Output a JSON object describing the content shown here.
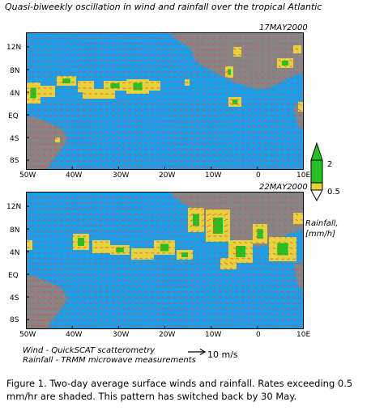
{
  "title": "Quasi-biweekly oscillation in wind and rainfall over the tropical Atlantic",
  "panels": [
    {
      "date": "17MAY2000"
    },
    {
      "date": "22MAY2000"
    }
  ],
  "lat_labels": [
    "12N",
    "8N",
    "4N",
    "EQ",
    "4S",
    "8S"
  ],
  "lon_labels": [
    "50W",
    "40W",
    "30W",
    "20W",
    "10W",
    "0",
    "10E"
  ],
  "legend": {
    "title_line1": "Rainfall,",
    "title_line2": "[mm/h]",
    "high_label": "2",
    "low_label": "0.5"
  },
  "credits": {
    "line1": "Wind - QuickSCAT scatterometry",
    "line2": "Rainfall - TRMM microwave measurements"
  },
  "scale": {
    "value": "10",
    "unit": "m/s"
  },
  "caption": "Figure 1. Two-day average surface winds and rainfall. Rates exceeding 0.5 mm/hr are shaded. This pattern has switched back by 30 May.",
  "colors": {
    "ocean": "#1a9fe8",
    "land": "#858585",
    "rain_low": "#e6d23c",
    "rain_high": "#22c222",
    "vectors": "#ff3b3b"
  }
}
